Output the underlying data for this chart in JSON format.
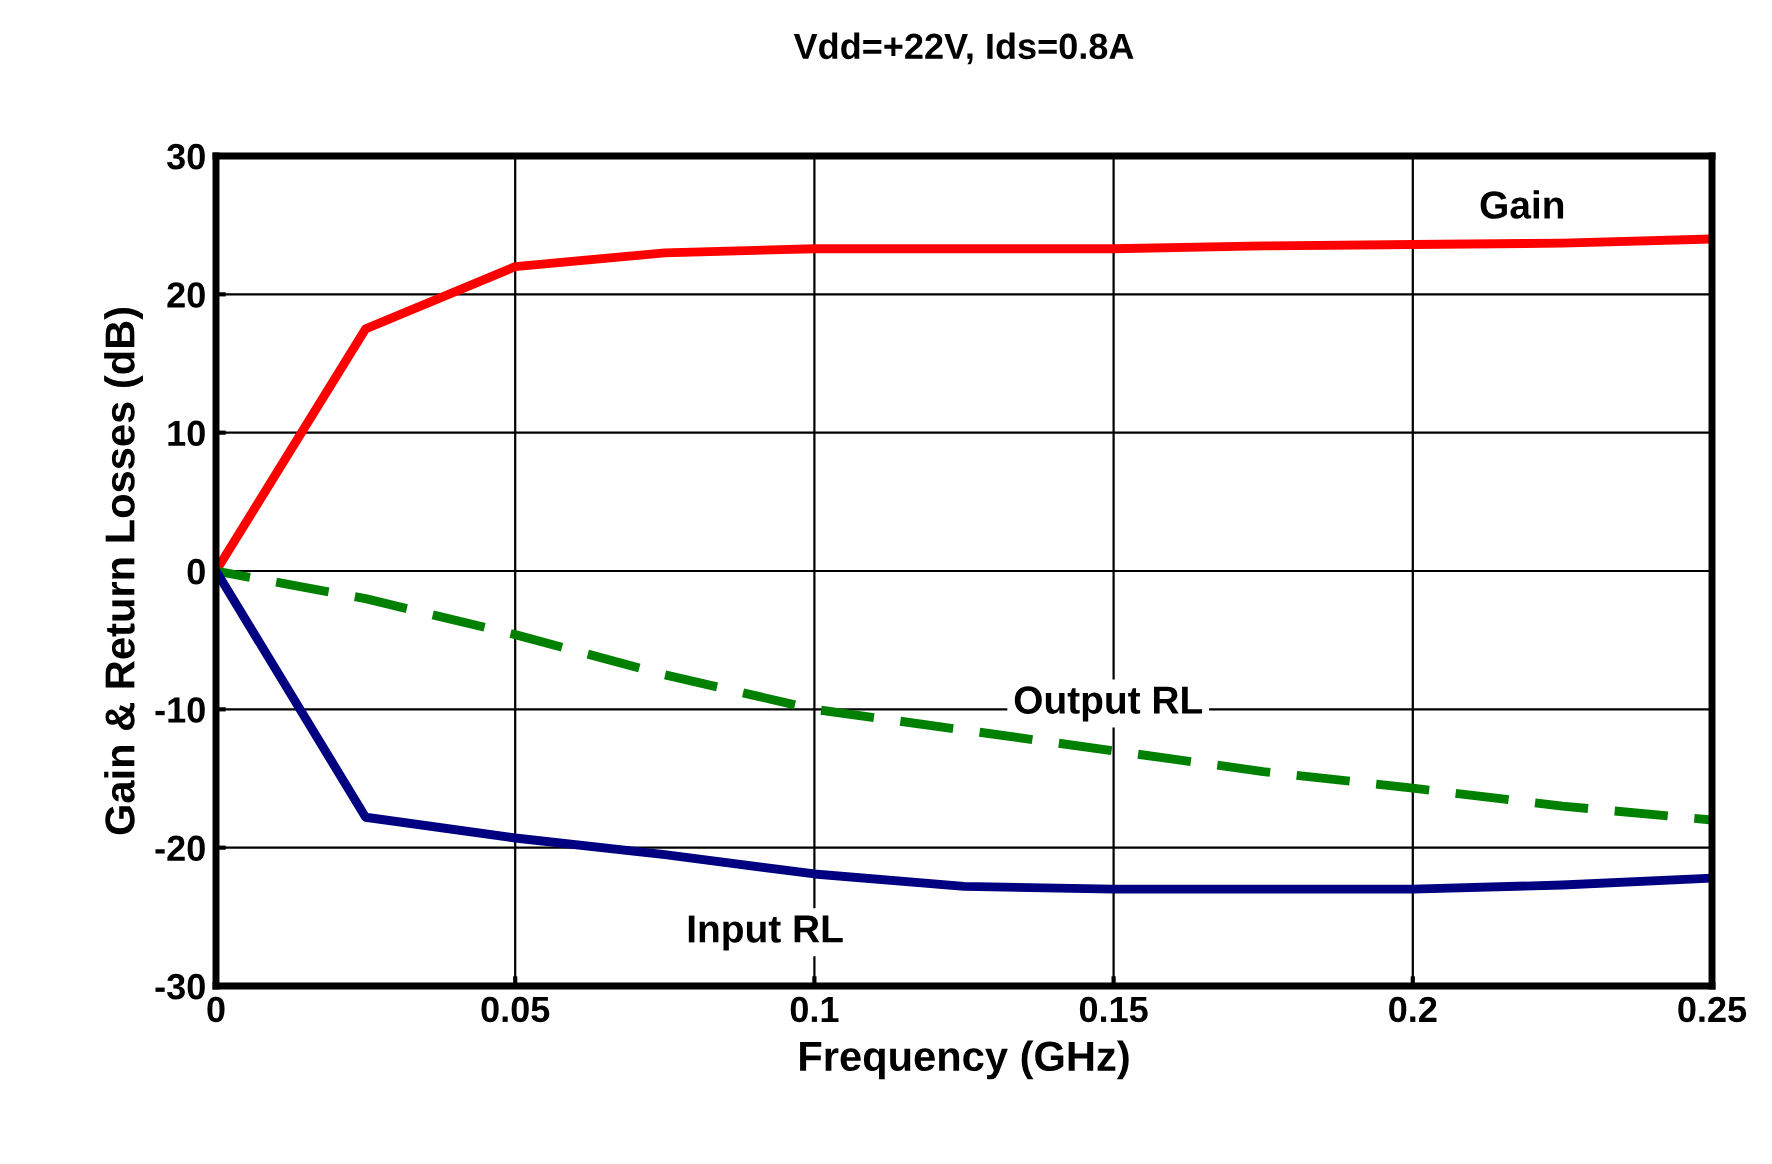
{
  "chart_data": {
    "type": "line",
    "title": "Vdd=+22V, Ids=0.8A",
    "xlabel": "Frequency (GHz)",
    "ylabel": "Gain & Return Losses (dB)",
    "x": [
      0,
      0.025,
      0.05,
      0.075,
      0.1,
      0.125,
      0.15,
      0.175,
      0.2,
      0.225,
      0.25
    ],
    "series": [
      {
        "name": "Gain",
        "color": "#ff0000",
        "line_style": "solid",
        "values": [
          0,
          17.5,
          22,
          23,
          23.3,
          23.3,
          23.3,
          23.5,
          23.6,
          23.7,
          24
        ]
      },
      {
        "name": "Output RL",
        "color": "#008000",
        "line_style": "dashed",
        "values": [
          0,
          -2,
          -4.6,
          -7.5,
          -10,
          -11.5,
          -13,
          -14.5,
          -15.7,
          -17,
          -18
        ]
      },
      {
        "name": "Input RL",
        "color": "#000080",
        "line_style": "solid",
        "values": [
          0,
          -17.8,
          -19.3,
          -20.5,
          -21.9,
          -22.8,
          -23,
          -23,
          -23,
          -22.7,
          -22.2
        ]
      }
    ],
    "xlim": [
      0,
      0.25
    ],
    "xticks": [
      0,
      0.05,
      0.1,
      0.15,
      0.2,
      0.25
    ],
    "ylim": [
      -30,
      30
    ],
    "yticks": [
      -30,
      -20,
      -10,
      0,
      10,
      20,
      30
    ],
    "grid": true,
    "legend": false,
    "marker": "none"
  }
}
